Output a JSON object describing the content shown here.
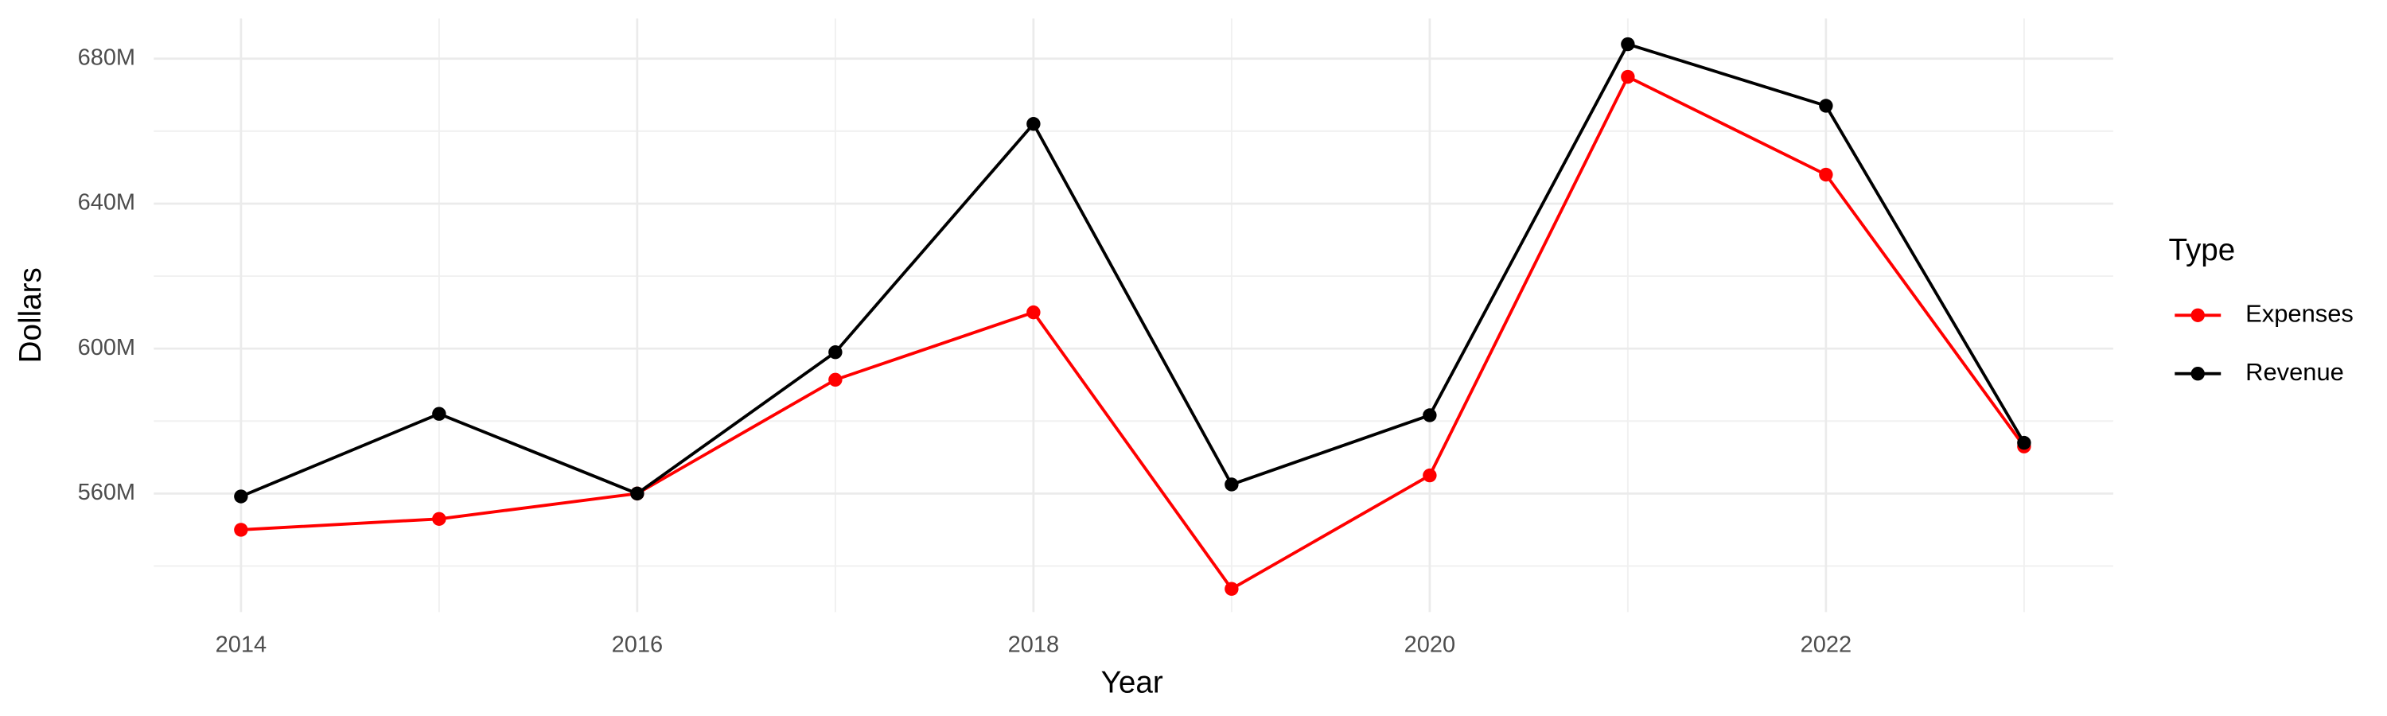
{
  "chart_data": {
    "type": "line",
    "x_label": "Year",
    "y_label": "Dollars",
    "legend_title": "Type",
    "legend_position": "right",
    "grid": true,
    "x": [
      2014,
      2015,
      2016,
      2017,
      2018,
      2019,
      2020,
      2021,
      2022,
      2023
    ],
    "series": [
      {
        "name": "Expenses",
        "color": "#ff0000",
        "values": [
          550000000,
          553000000,
          560000000,
          591400000,
          610000000,
          533700000,
          565000000,
          675000000,
          648000000,
          573000000
        ]
      },
      {
        "name": "Revenue",
        "color": "#000000",
        "values": [
          559200000,
          582000000,
          560000000,
          599000000,
          662000000,
          562500000,
          581600000,
          684000000,
          667000000,
          574000000
        ]
      }
    ],
    "xlim": [
      2013.56,
      2023.45
    ],
    "xticks": [
      2014,
      2016,
      2018,
      2020,
      2022
    ],
    "ylim": [
      527300000,
      691100000
    ],
    "yticks": [
      {
        "value": 560000000,
        "label": "560M"
      },
      {
        "value": 600000000,
        "label": "600M"
      },
      {
        "value": 640000000,
        "label": "640M"
      },
      {
        "value": 680000000,
        "label": "680M"
      }
    ]
  }
}
